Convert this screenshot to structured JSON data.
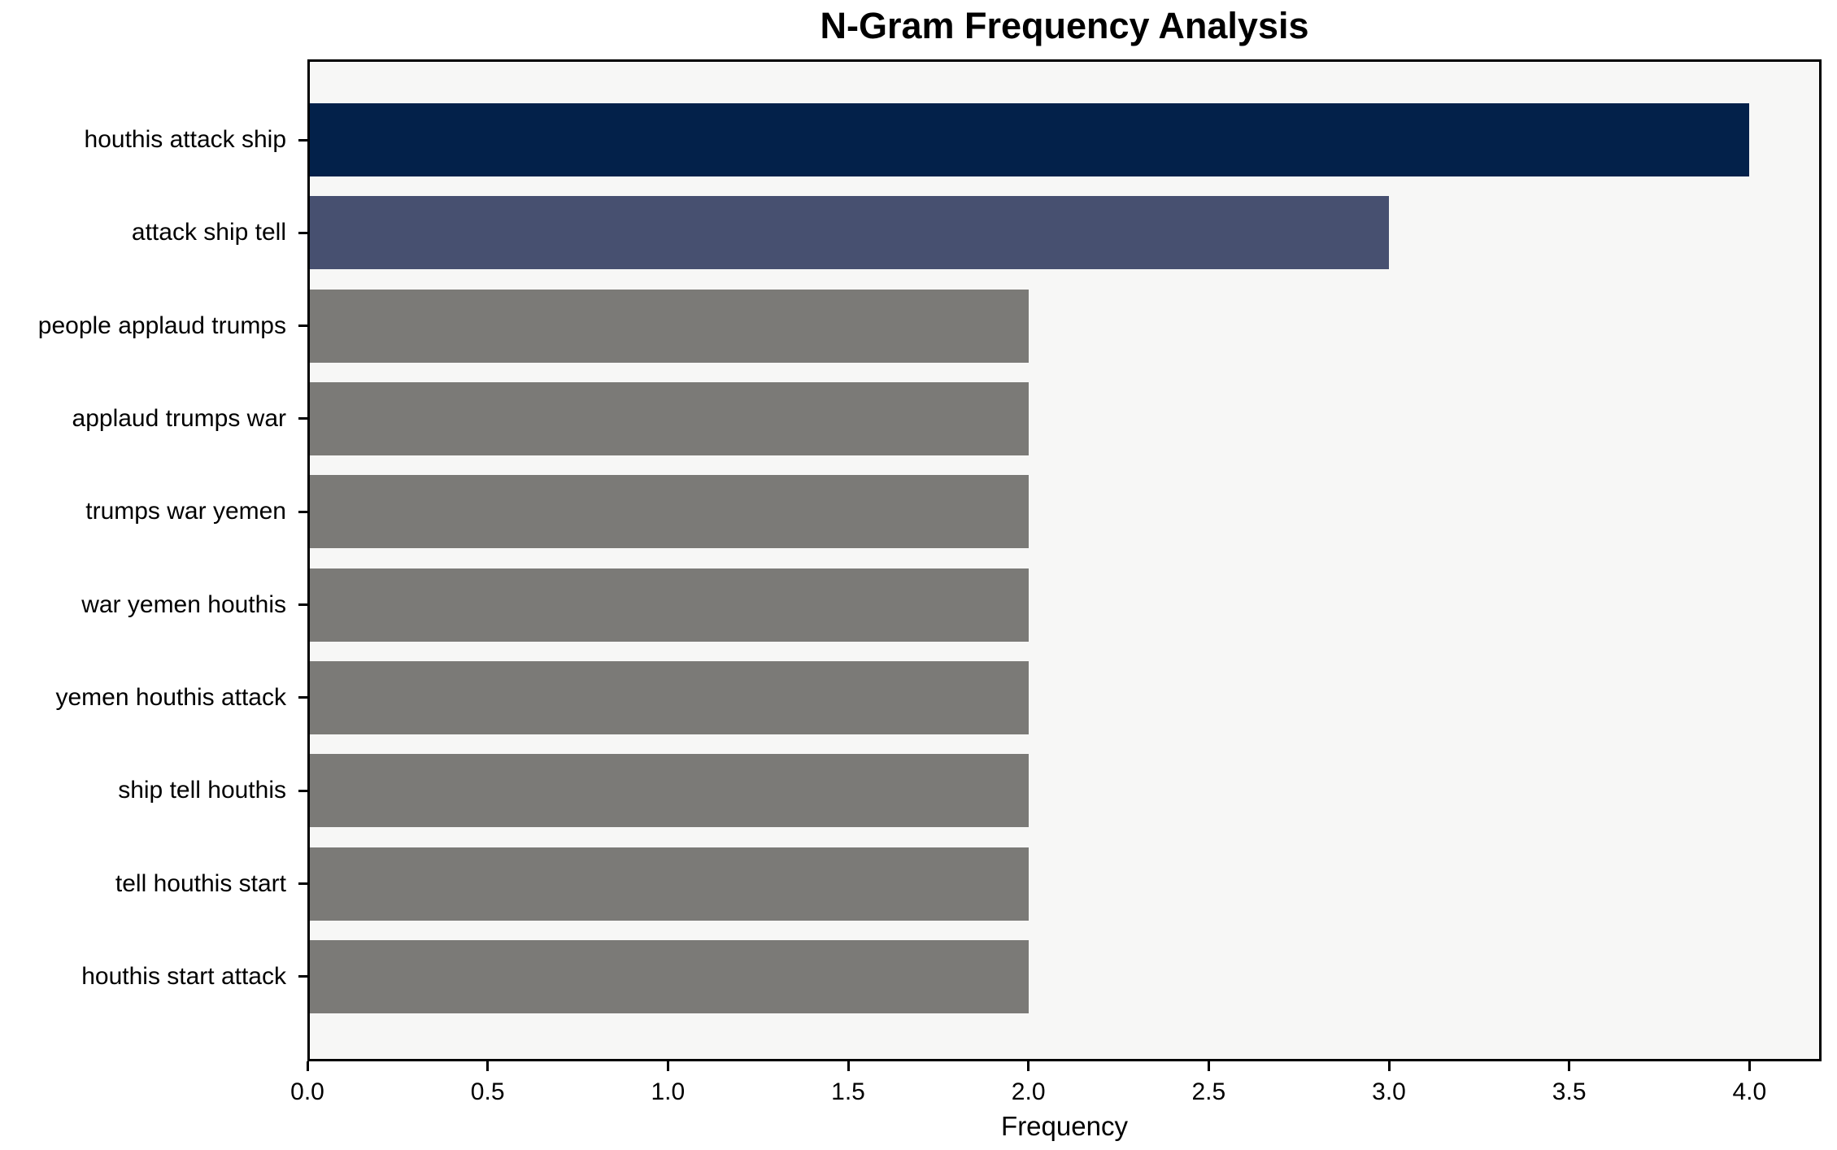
{
  "chart_data": {
    "type": "bar",
    "orientation": "horizontal",
    "title": "N-Gram Frequency Analysis",
    "xlabel": "Frequency",
    "ylabel": "",
    "categories": [
      "houthis attack ship",
      "attack ship tell",
      "people applaud trumps",
      "applaud trumps war",
      "trumps war yemen",
      "war yemen houthis",
      "yemen houthis attack",
      "ship tell houthis",
      "tell houthis start",
      "houthis start attack"
    ],
    "values": [
      4,
      3,
      2,
      2,
      2,
      2,
      2,
      2,
      2,
      2
    ],
    "bar_colors": [
      "#03214a",
      "#475070",
      "#7b7a77",
      "#7b7a77",
      "#7b7a77",
      "#7b7a77",
      "#7b7a77",
      "#7b7a77",
      "#7b7a77",
      "#7b7a77"
    ],
    "xlim": [
      0,
      4.2
    ],
    "xticks": [
      0.0,
      0.5,
      1.0,
      1.5,
      2.0,
      2.5,
      3.0,
      3.5,
      4.0
    ],
    "xtick_labels": [
      "0.0",
      "0.5",
      "1.0",
      "1.5",
      "2.0",
      "2.5",
      "3.0",
      "3.5",
      "4.0"
    ],
    "grid": false,
    "legend": null,
    "plot_background": "#f7f7f6",
    "page_background": "#ffffff",
    "axis_color": "#000000"
  }
}
